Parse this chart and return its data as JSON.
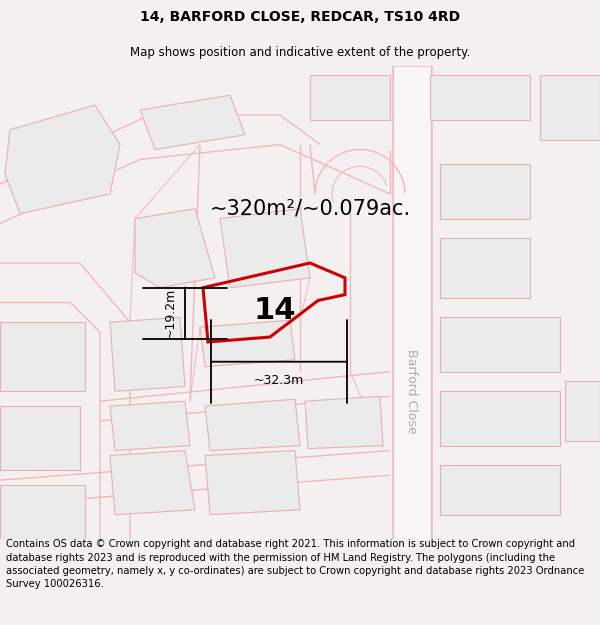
{
  "title": "14, BARFORD CLOSE, REDCAR, TS10 4RD",
  "subtitle": "Map shows position and indicative extent of the property.",
  "area_text": "~320m²/~0.079ac.",
  "width_label": "~32.3m",
  "height_label": "~19.2m",
  "number_label": "14",
  "road_label": "Barford Close",
  "footer_text": "Contains OS data © Crown copyright and database right 2021. This information is subject to Crown copyright and database rights 2023 and is reproduced with the permission of HM Land Registry. The polygons (including the associated geometry, namely x, y co-ordinates) are subject to Crown copyright and database rights 2023 Ordnance Survey 100026316.",
  "bg_color": "#f5f0f0",
  "map_bg_color": "#ffffff",
  "plot_edge_color": "#cc0000",
  "building_fill": "#ebebeb",
  "building_edge": "#e8b0b0",
  "road_line_color": "#f0b8b8",
  "road_fill_color": "#faf5f5",
  "barford_road_fill": "#f5f5f5",
  "barford_road_edge": "#c8c8c8",
  "road_label_color": "#aaaaaa",
  "title_fontsize": 10,
  "subtitle_fontsize": 8.5,
  "area_fontsize": 15,
  "number_fontsize": 22,
  "dim_fontsize": 9,
  "road_label_fontsize": 9,
  "footer_fontsize": 7.2
}
